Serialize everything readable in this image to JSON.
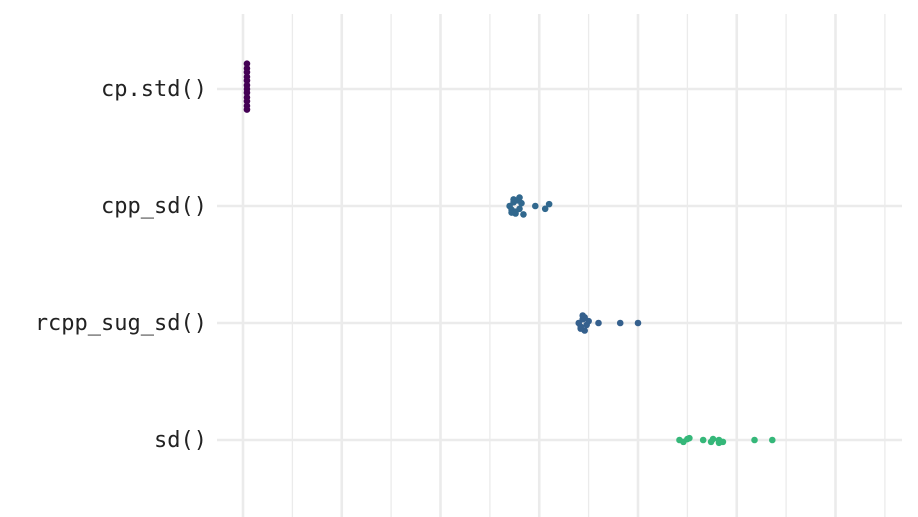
{
  "chart_data": {
    "type": "scatter",
    "subtype": "strip/beeswarm",
    "title": "",
    "xlabel": "",
    "ylabel": "",
    "x_tick_labels_visible": false,
    "grid": true,
    "legend": "none",
    "categories": [
      "cp.std()",
      "cpp_sd()",
      "rcpp_sug_sd()",
      "sd()"
    ],
    "series": [
      {
        "category": "cp.std()",
        "color": "#440154",
        "x": [
          0.02,
          0.02,
          0.02,
          0.02,
          0.02,
          0.02,
          0.02,
          0.02,
          0.02,
          0.02,
          0.02,
          0.02
        ],
        "y_jitter": [
          -0.27,
          -0.22,
          -0.18,
          -0.13,
          -0.09,
          -0.04,
          0.0,
          0.04,
          0.09,
          0.13,
          0.18,
          0.22
        ]
      },
      {
        "category": "cpp_sd()",
        "color": "#31688e",
        "x": [
          1.35,
          1.36,
          1.37,
          1.38,
          1.39,
          1.4,
          1.41,
          1.36,
          1.38,
          1.42,
          1.48,
          1.53,
          1.55,
          1.37,
          1.4
        ],
        "y_jitter": [
          0.0,
          0.04,
          -0.04,
          0.06,
          -0.06,
          0.03,
          -0.03,
          0.07,
          0.08,
          0.09,
          0.0,
          0.03,
          -0.02,
          -0.07,
          -0.09
        ]
      },
      {
        "category": "rcpp_sug_sd()",
        "color": "#35608d",
        "x": [
          1.7,
          1.71,
          1.72,
          1.73,
          1.74,
          1.72,
          1.75,
          1.71,
          1.73,
          1.8,
          1.91,
          2.0
        ],
        "y_jitter": [
          0.0,
          0.04,
          -0.04,
          0.08,
          0.02,
          -0.08,
          -0.02,
          0.06,
          -0.06,
          0.0,
          0.0,
          0.0
        ]
      },
      {
        "category": "sd()",
        "color": "#35b779",
        "x": [
          2.21,
          2.23,
          2.25,
          2.26,
          2.33,
          2.37,
          2.38,
          2.41,
          2.41,
          2.43,
          2.59,
          2.68
        ],
        "y_jitter": [
          0.0,
          0.02,
          -0.01,
          -0.02,
          0.0,
          0.02,
          -0.01,
          0.03,
          0.0,
          0.02,
          0.0,
          0.0
        ]
      }
    ],
    "xlim": [
      0.0,
      3.25
    ]
  }
}
